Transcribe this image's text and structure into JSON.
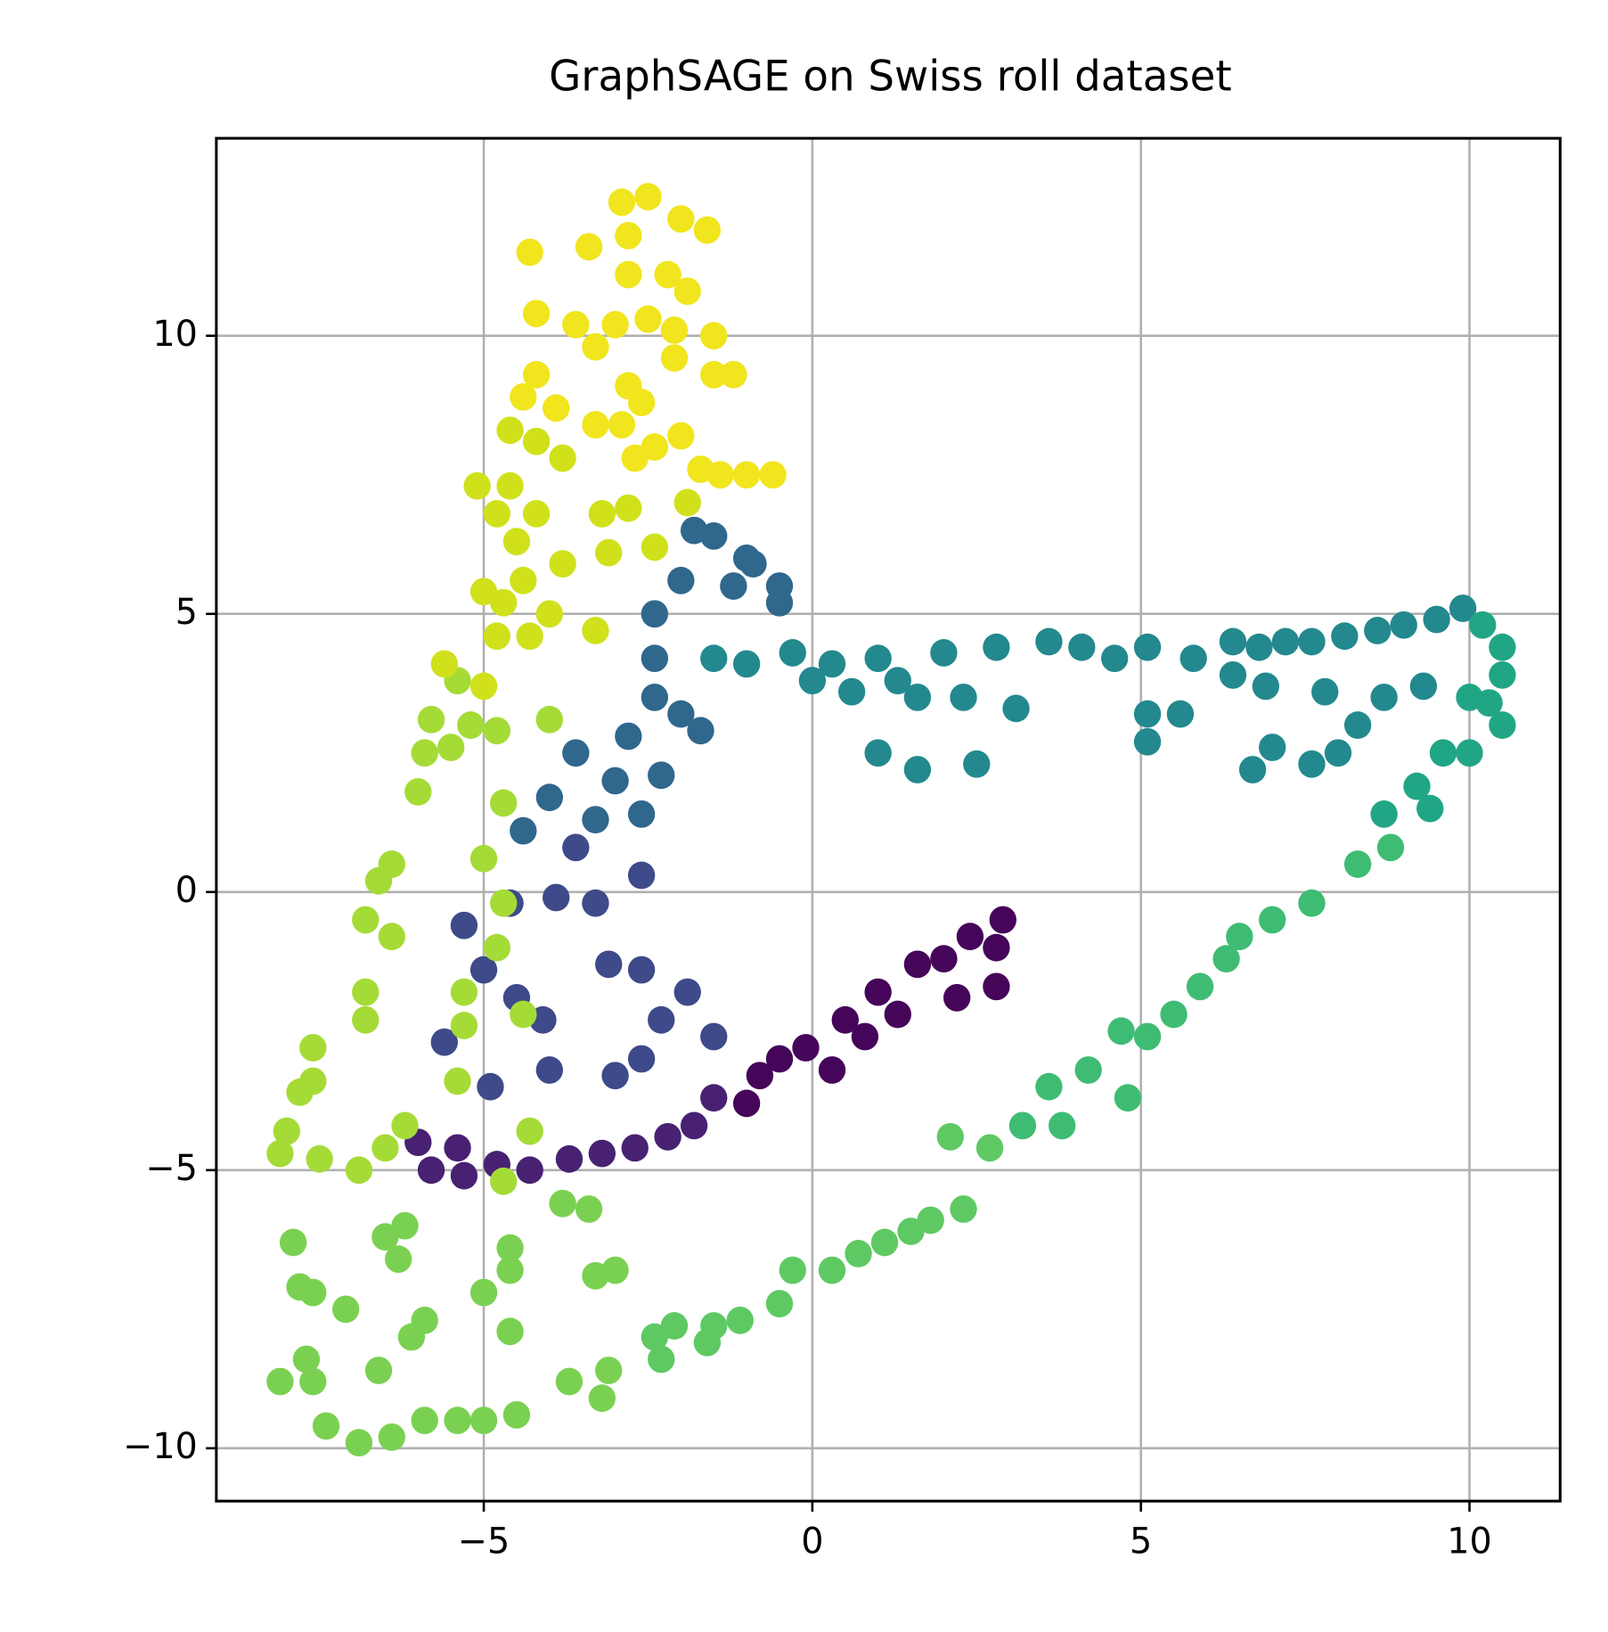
{
  "chart_data": {
    "type": "scatter",
    "title": "GraphSAGE on Swiss roll dataset",
    "xlim": [
      -9.07,
      11.38
    ],
    "ylim": [
      -10.95,
      13.55
    ],
    "xticks": [
      {
        "value": -5,
        "label": "−5"
      },
      0,
      5,
      10
    ],
    "yticks": [
      {
        "value": -10,
        "label": "−10"
      },
      {
        "value": -5,
        "label": "−5"
      },
      0,
      5,
      10
    ],
    "grid": true,
    "series": [
      {
        "color": "#450559",
        "x": [
          2.9,
          2.8,
          2.4,
          2.8,
          2.0,
          1.6,
          2.2,
          1.0,
          1.3,
          0.5,
          0.8,
          -0.1,
          0.3,
          -0.5,
          -0.8,
          -1.0
        ],
        "y": [
          -0.5,
          -1.0,
          -0.8,
          -1.7,
          -1.2,
          -1.3,
          -1.9,
          -1.8,
          -2.2,
          -2.3,
          -2.6,
          -2.8,
          -3.2,
          -3.0,
          -3.3,
          -3.8
        ]
      },
      {
        "color": "#482173",
        "x": [
          -1.5,
          -1.8,
          -2.2,
          -2.7,
          -3.2,
          -3.7,
          -4.3,
          -4.8,
          -5.3,
          -5.8,
          -6.0,
          -5.4
        ],
        "y": [
          -3.7,
          -4.2,
          -4.4,
          -4.6,
          -4.7,
          -4.8,
          -5.0,
          -4.9,
          -5.1,
          -5.0,
          -4.5,
          -4.6
        ]
      },
      {
        "color": "#3e4a89",
        "x": [
          -5.6,
          -4.9,
          -4.0,
          -3.0,
          -2.6,
          -2.3,
          -1.9,
          -1.5,
          -2.6,
          -3.1,
          -4.1,
          -4.5,
          -5.0,
          -5.3,
          -4.6,
          -3.9,
          -3.3,
          -3.6,
          -2.6
        ],
        "y": [
          -2.7,
          -3.5,
          -3.2,
          -3.3,
          -3.0,
          -2.3,
          -1.8,
          -2.6,
          -1.4,
          -1.3,
          -2.3,
          -1.9,
          -1.4,
          -0.6,
          -0.2,
          -0.1,
          -0.2,
          0.8,
          0.3
        ]
      },
      {
        "color": "#30678d",
        "x": [
          -4.4,
          -3.3,
          -2.6,
          -4.0,
          -3.0,
          -2.3,
          -3.6,
          -2.8,
          -2.0,
          -1.7,
          -2.4,
          -2.4,
          -2.4,
          -2.0,
          -1.8,
          -1.5,
          -1.0,
          -0.9,
          -0.5,
          -0.5,
          -1.2
        ],
        "y": [
          1.1,
          1.3,
          1.4,
          1.7,
          2.0,
          2.1,
          2.5,
          2.8,
          3.2,
          2.9,
          3.5,
          4.2,
          5.0,
          5.6,
          6.5,
          6.4,
          6.0,
          5.9,
          5.5,
          5.2,
          5.5
        ]
      },
      {
        "color": "#23898e",
        "x": [
          -1.5,
          -1.0,
          -0.3,
          0.3,
          0.0,
          0.6,
          1.0,
          1.3,
          1.6,
          2.0,
          2.3,
          2.8,
          3.1,
          3.6,
          4.1,
          4.6,
          5.1,
          5.1,
          5.6,
          5.1,
          5.8,
          1.0,
          1.6,
          2.5,
          6.4,
          6.8,
          7.2,
          7.6,
          8.1,
          8.6,
          9.0,
          9.5,
          9.9,
          6.7,
          7.0,
          7.6,
          8.0,
          8.3,
          8.7,
          9.3,
          6.4,
          6.9,
          7.8
        ],
        "y": [
          4.2,
          4.1,
          4.3,
          4.1,
          3.8,
          3.6,
          4.2,
          3.8,
          3.5,
          4.3,
          3.5,
          4.4,
          3.3,
          4.5,
          4.4,
          4.2,
          4.4,
          3.2,
          3.2,
          2.7,
          4.2,
          2.5,
          2.2,
          2.3,
          4.5,
          4.4,
          4.5,
          4.5,
          4.6,
          4.7,
          4.8,
          4.9,
          5.1,
          2.2,
          2.6,
          2.3,
          2.5,
          3.0,
          3.5,
          3.7,
          3.9,
          3.7,
          3.6
        ]
      },
      {
        "color": "#21a685",
        "x": [
          10.2,
          10.5,
          10.5,
          10.3,
          10.0,
          10.5,
          10.0,
          9.6,
          9.2,
          9.4,
          8.7
        ],
        "y": [
          4.8,
          4.4,
          3.9,
          3.4,
          3.5,
          3.0,
          2.5,
          2.5,
          1.9,
          1.5,
          1.4
        ]
      },
      {
        "color": "#3fbc73",
        "x": [
          8.8,
          8.3,
          7.6,
          7.0,
          6.5,
          6.3,
          5.9,
          5.5,
          5.1,
          4.7,
          4.2,
          3.6,
          3.2,
          3.8,
          4.8
        ],
        "y": [
          0.8,
          0.5,
          -0.2,
          -0.5,
          -0.8,
          -1.2,
          -1.7,
          -2.2,
          -2.6,
          -2.5,
          -3.2,
          -3.5,
          -4.2,
          -4.2,
          -3.7
        ]
      },
      {
        "color": "#5ec962",
        "x": [
          2.7,
          2.1,
          2.3,
          1.8,
          1.5,
          1.1,
          0.7,
          0.3,
          -0.3,
          -0.5,
          -1.1,
          -1.5,
          -2.1,
          -2.4,
          -2.3,
          -1.6
        ],
        "y": [
          -4.6,
          -4.4,
          -5.7,
          -5.9,
          -6.1,
          -6.3,
          -6.5,
          -6.8,
          -6.8,
          -7.4,
          -7.7,
          -7.8,
          -7.8,
          -8.0,
          -8.4,
          -8.1
        ]
      },
      {
        "color": "#7ad151",
        "x": [
          -3.1,
          -3.2,
          -3.7,
          -4.5,
          -5.0,
          -5.4,
          -5.9,
          -6.4,
          -6.9,
          -7.4,
          -7.6,
          -8.1,
          -7.7,
          -6.6,
          -6.1,
          -5.9,
          -4.6,
          -5.0,
          -4.6,
          -4.6,
          -3.3,
          -3.0,
          -6.3,
          -6.5,
          -6.2,
          -7.1,
          -7.6,
          -7.8,
          -7.9,
          -3.4,
          -3.8
        ],
        "y": [
          -8.6,
          -9.1,
          -8.8,
          -9.4,
          -9.5,
          -9.5,
          -9.5,
          -9.8,
          -9.9,
          -9.6,
          -8.8,
          -8.8,
          -8.4,
          -8.6,
          -8.0,
          -7.7,
          -7.9,
          -7.2,
          -6.8,
          -6.4,
          -6.9,
          -6.8,
          -6.6,
          -6.2,
          -6.0,
          -7.5,
          -7.2,
          -7.1,
          -6.3,
          -5.7,
          -5.6
        ]
      },
      {
        "color": "#a5db36",
        "x": [
          -4.7,
          -4.3,
          -7.5,
          -6.9,
          -6.5,
          -6.2,
          -8.1,
          -8.0,
          -7.8,
          -7.6,
          -7.6,
          -5.4,
          -6.8,
          -6.8,
          -5.3,
          -5.3,
          -4.8,
          -4.4,
          -6.8,
          -6.4,
          -6.6,
          -6.4,
          -5.0,
          -4.7,
          -4.7,
          -6.0,
          -5.9,
          -5.5,
          -5.8,
          -5.2,
          -5.4,
          -4.8,
          -4.0
        ],
        "y": [
          -5.2,
          -4.3,
          -4.8,
          -5.0,
          -4.6,
          -4.2,
          -4.7,
          -4.3,
          -3.6,
          -3.4,
          -2.8,
          -3.4,
          -2.3,
          -1.8,
          -2.4,
          -1.8,
          -1.0,
          -2.2,
          -0.5,
          -0.8,
          0.2,
          0.5,
          0.6,
          -0.2,
          1.6,
          1.8,
          2.5,
          2.6,
          3.1,
          3.0,
          3.8,
          2.9,
          3.1
        ]
      },
      {
        "color": "#d0e11c",
        "x": [
          -5.6,
          -5.0,
          -4.8,
          -4.3,
          -4.7,
          -4.0,
          -5.0,
          -4.4,
          -3.8,
          -4.5,
          -4.2,
          -4.8,
          -5.1,
          -4.6,
          -3.3,
          -3.1,
          -3.2,
          -2.8,
          -2.4,
          -1.9,
          -4.6,
          -4.2,
          -3.8
        ],
        "y": [
          4.1,
          3.7,
          4.6,
          4.6,
          5.2,
          5.0,
          5.4,
          5.6,
          5.9,
          6.3,
          6.8,
          6.8,
          7.3,
          7.3,
          4.7,
          6.1,
          6.8,
          6.9,
          6.2,
          7.0,
          8.3,
          8.1,
          7.8
        ]
      },
      {
        "color": "#f1e51d",
        "x": [
          -3.3,
          -2.9,
          -2.7,
          -2.4,
          -2.0,
          -1.7,
          -1.4,
          -1.0,
          -0.6,
          -4.4,
          -4.2,
          -3.9,
          -2.8,
          -2.6,
          -3.6,
          -3.3,
          -4.2,
          -3.0,
          -2.5,
          -2.1,
          -2.1,
          -1.5,
          -1.5,
          -1.2,
          -4.3,
          -3.4,
          -2.8,
          -2.2,
          -1.9,
          -2.8,
          -2.9,
          -2.5,
          -2.0,
          -1.6
        ],
        "y": [
          8.4,
          8.4,
          7.8,
          8.0,
          8.2,
          7.6,
          7.5,
          7.5,
          7.5,
          8.9,
          9.3,
          8.7,
          9.1,
          8.8,
          10.2,
          9.8,
          10.4,
          10.2,
          10.3,
          10.1,
          9.6,
          10.0,
          9.3,
          9.3,
          11.5,
          11.6,
          11.1,
          11.1,
          10.8,
          11.8,
          12.4,
          12.5,
          12.1,
          11.9
        ]
      }
    ]
  }
}
